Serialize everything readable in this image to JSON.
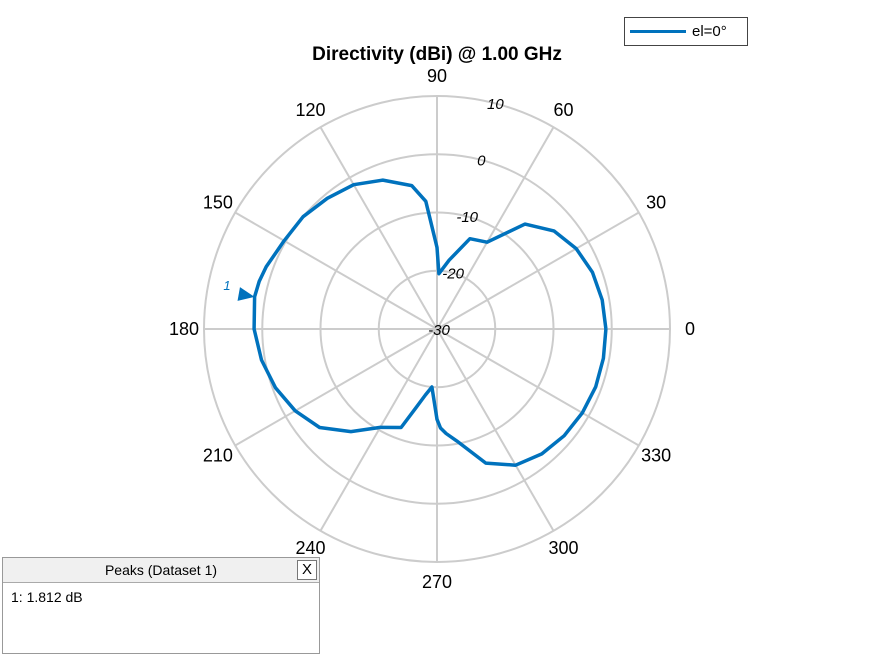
{
  "chart_data": {
    "type": "polar-line",
    "title": "Directivity (dBi) @ 1.00 GHz",
    "radial_range": [
      -30,
      10
    ],
    "radial_ticks": [
      -30,
      -20,
      -10,
      0,
      10
    ],
    "radial_tick_labels": [
      "-30",
      "-20",
      "-10",
      "0",
      "10"
    ],
    "angle_ticks": [
      0,
      30,
      60,
      90,
      120,
      150,
      180,
      210,
      240,
      270,
      300,
      330
    ],
    "angle_tick_labels": [
      "0",
      "30",
      "60",
      "90",
      "120",
      "150",
      "180",
      "210",
      "240",
      "270",
      "300",
      "330"
    ],
    "series": [
      {
        "name": "el=0°",
        "color": "#0072BD",
        "angles_deg": [
          0,
          10,
          20,
          30,
          40,
          50,
          60,
          70,
          80,
          88,
          90,
          95,
          100,
          110,
          120,
          130,
          140,
          150,
          160,
          165,
          170,
          180,
          190,
          200,
          210,
          220,
          230,
          240,
          250,
          255,
          260,
          265,
          270,
          272,
          275,
          280,
          290,
          300,
          310,
          320,
          330,
          340,
          350,
          360
        ],
        "values_db": [
          -1.0,
          -1.2,
          -1.6,
          -2.4,
          -3.8,
          -6.5,
          -12.8,
          -13.5,
          -18.0,
          -20.5,
          -16.0,
          -8.0,
          -5.0,
          -2.8,
          -1.4,
          -0.7,
          0.0,
          0.3,
          1.2,
          1.6,
          1.8,
          1.4,
          0.6,
          -0.5,
          -1.9,
          -3.7,
          -7.0,
          -10.5,
          -12.0,
          -16.0,
          -18.5,
          -20.0,
          -14.5,
          -13.0,
          -12.0,
          -10.5,
          -5.5,
          -3.0,
          -2.0,
          -1.5,
          -1.2,
          -1.0,
          -1.0,
          -1.0
        ]
      }
    ],
    "markers": [
      {
        "label": "1",
        "angle_deg": 170,
        "value_db": 1.812
      }
    ],
    "legend_position": "top-right",
    "grid": true
  },
  "legend": {
    "label": "el=0°"
  },
  "peaks_panel": {
    "title": "Peaks (Dataset 1)",
    "close_label": "X",
    "entry": "1: 1.812 dB"
  },
  "colors": {
    "series": "#0072BD",
    "grid": "#cccccc"
  }
}
